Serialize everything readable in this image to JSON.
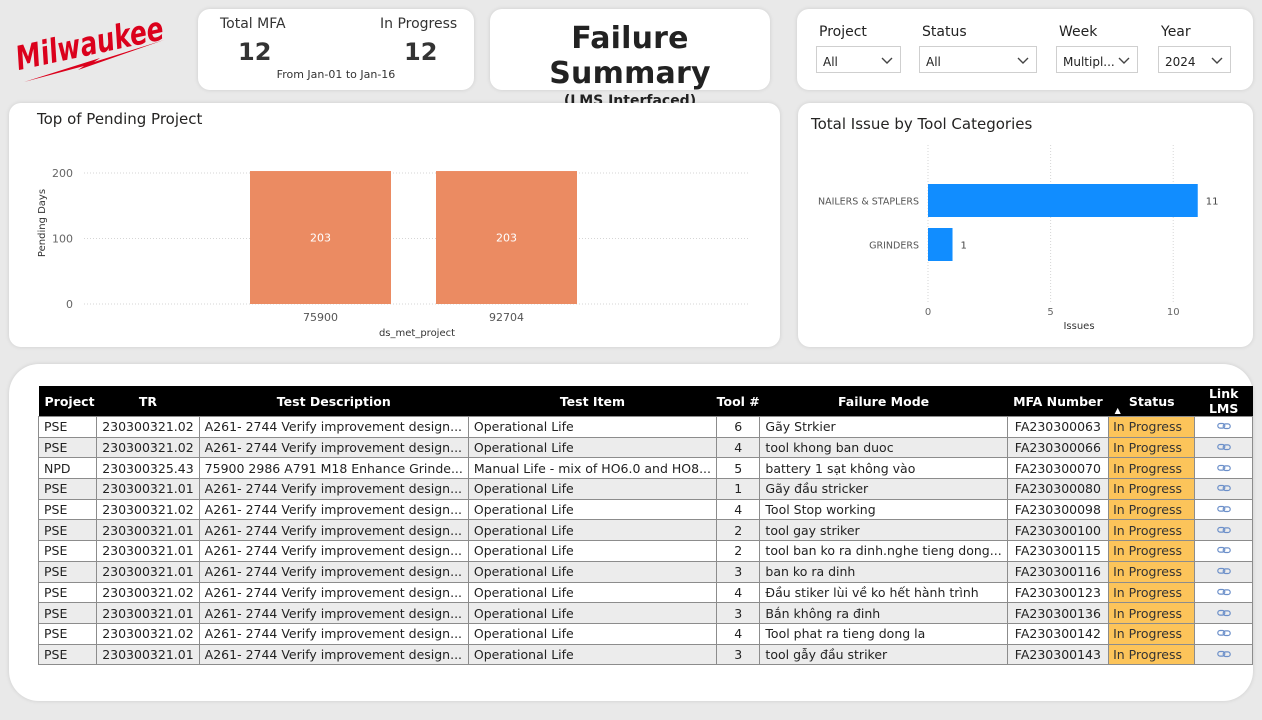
{
  "brand": {
    "name": "Milwaukee",
    "color": "#db011c"
  },
  "kpi": {
    "total_label": "Total MFA",
    "total_value": "12",
    "progress_label": "In Progress",
    "progress_value": "12",
    "date_range": "From Jan-01 to Jan-16"
  },
  "header": {
    "title": "Failure Summary",
    "subtitle": "(LMS Interfaced)"
  },
  "filters": [
    {
      "label": "Project",
      "value": "All"
    },
    {
      "label": "Status",
      "value": "All"
    },
    {
      "label": "Week",
      "value": "Multipl..."
    },
    {
      "label": "Year",
      "value": "2024"
    }
  ],
  "chart_data": [
    {
      "type": "bar",
      "title": "Top of Pending Project",
      "xlabel": "ds_met_project",
      "ylabel": "Pending Days",
      "categories": [
        "75900",
        "92704"
      ],
      "values": [
        203,
        203
      ],
      "data_labels": [
        "203",
        "203"
      ],
      "yticks": [
        "0",
        "100",
        "200"
      ],
      "ylim": [
        0,
        210
      ],
      "color": "#eb8b62",
      "grid": true
    },
    {
      "type": "bar",
      "orientation": "horizontal",
      "title": "Total Issue by Tool Categories",
      "xlabel": "Issues",
      "categories": [
        "NAILERS & STAPLERS",
        "GRINDERS"
      ],
      "values": [
        11,
        1
      ],
      "data_labels": [
        "11",
        "1"
      ],
      "xticks": [
        "0",
        "5",
        "10"
      ],
      "xlim": [
        0,
        11.5
      ],
      "color": "#118dff",
      "grid": true
    }
  ],
  "table": {
    "columns": [
      "Project",
      "TR",
      "Test Description",
      "Test Item",
      "Tool #",
      "Failure Mode",
      "MFA Number",
      "Status",
      "Link LMS"
    ],
    "status_color": "#fcc45a",
    "rows": [
      [
        "PSE",
        "230300321.02",
        "A261- 2744 Verify improvement design...",
        "Operational Life",
        "6",
        "Gãy Strkier",
        "FA230300063",
        "In Progress"
      ],
      [
        "PSE",
        "230300321.02",
        "A261- 2744 Verify improvement design...",
        "Operational Life",
        "4",
        "tool khong ban duoc",
        "FA230300066",
        "In Progress"
      ],
      [
        "NPD",
        "230300325.43",
        "75900 2986 A791 M18 Enhance Grinde...",
        "Manual Life - mix of HO6.0 and HO8...",
        "5",
        "battery 1 sạt không vào",
        "FA230300070",
        "In Progress"
      ],
      [
        "PSE",
        "230300321.01",
        "A261- 2744 Verify improvement design...",
        "Operational Life",
        "1",
        "Gãy đầu stricker",
        "FA230300080",
        "In Progress"
      ],
      [
        "PSE",
        "230300321.02",
        "A261- 2744 Verify improvement design...",
        "Operational Life",
        "4",
        "Tool Stop working",
        "FA230300098",
        "In Progress"
      ],
      [
        "PSE",
        "230300321.01",
        "A261- 2744 Verify improvement design...",
        "Operational Life",
        "2",
        "tool gay striker",
        "FA230300100",
        "In Progress"
      ],
      [
        "PSE",
        "230300321.01",
        "A261- 2744 Verify improvement design...",
        "Operational Life",
        "2",
        "tool ban ko ra dinh.nghe tieng dong...",
        "FA230300115",
        "In Progress"
      ],
      [
        "PSE",
        "230300321.01",
        "A261- 2744 Verify improvement design...",
        "Operational Life",
        "3",
        "ban ko ra dinh",
        "FA230300116",
        "In Progress"
      ],
      [
        "PSE",
        "230300321.02",
        "A261- 2744 Verify improvement design...",
        "Operational Life",
        "4",
        "Đầu stiker lùi về ko hết hành trình",
        "FA230300123",
        "In Progress"
      ],
      [
        "PSE",
        "230300321.01",
        "A261- 2744 Verify improvement design...",
        "Operational Life",
        "3",
        "Bắn không ra đinh",
        "FA230300136",
        "In Progress"
      ],
      [
        "PSE",
        "230300321.02",
        "A261- 2744 Verify improvement design...",
        "Operational Life",
        "4",
        "Tool phat ra tieng dong la",
        "FA230300142",
        "In Progress"
      ],
      [
        "PSE",
        "230300321.01",
        "A261- 2744 Verify improvement design...",
        "Operational Life",
        "3",
        "tool gẫy đầu striker",
        "FA230300143",
        "In Progress"
      ]
    ]
  }
}
